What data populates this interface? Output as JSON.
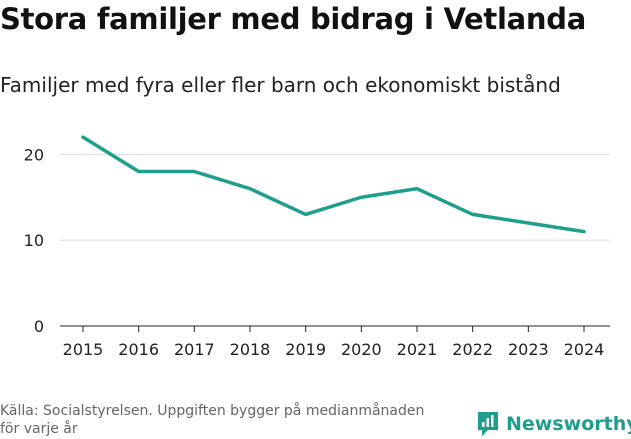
{
  "title": "Stora familjer med bidrag i Vetlanda",
  "subtitle": "Familjer med fyra eller fler barn och ekonomiskt bistånd",
  "footer": {
    "source_line1": "Källa: Socialstyrelsen. Uppgiften bygger på medianmånaden",
    "source_line2": "för varje år"
  },
  "brand": {
    "name": "Newsworthy",
    "icon": "newsworthy-logo-icon"
  },
  "colors": {
    "line": "#1e9f8e",
    "grid": "#dddddd",
    "axis": "#222222",
    "brand": "#1e9f8e"
  },
  "chart_data": {
    "type": "line",
    "title": "Stora familjer med bidrag i Vetlanda",
    "xlabel": "",
    "ylabel": "",
    "x": [
      "2015",
      "2016",
      "2017",
      "2018",
      "2019",
      "2020",
      "2021",
      "2022",
      "2023",
      "2024"
    ],
    "series": [
      {
        "name": "Familjer",
        "values": [
          22,
          18,
          18,
          16,
          13,
          15,
          16,
          13,
          12,
          11
        ]
      }
    ],
    "yticks": [
      0,
      10,
      20
    ],
    "ylim": [
      0,
      24
    ]
  }
}
